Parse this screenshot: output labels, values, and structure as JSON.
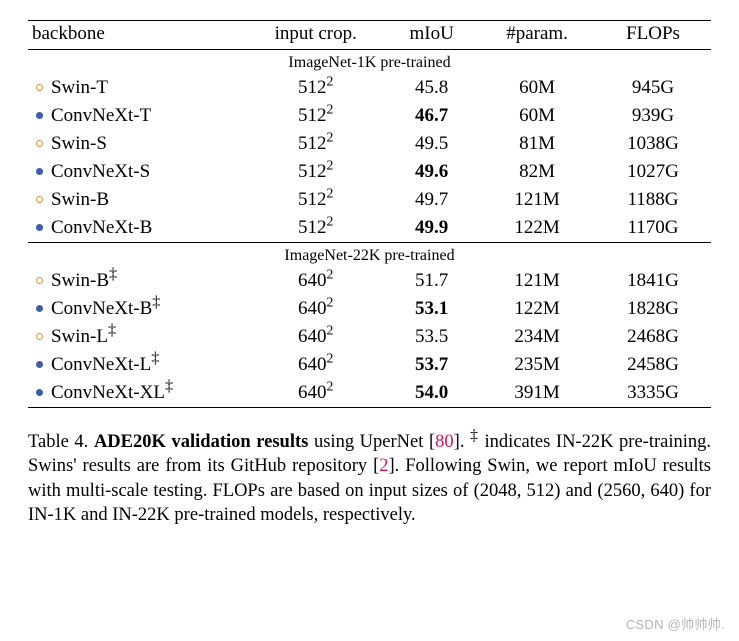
{
  "colors": {
    "swin_bullet": "#e98f3f",
    "convnext_bullet": "#3a5da8",
    "ref_link": "#d4145a"
  },
  "header": {
    "backbone": "backbone",
    "input_crop": "input crop.",
    "miou": "mIoU",
    "param": "#param.",
    "flops": "FLOPs"
  },
  "sections": [
    {
      "title": "ImageNet-1K pre-trained",
      "rows": [
        {
          "bullet": "hollow",
          "bullet_color": "swin",
          "name": "Swin-T",
          "crop_base": "512",
          "crop_exp": "2",
          "miou": "45.8",
          "miou_bold": false,
          "param": "60M",
          "flops": "945G"
        },
        {
          "bullet": "filled",
          "bullet_color": "convnext",
          "name": "ConvNeXt-T",
          "crop_base": "512",
          "crop_exp": "2",
          "miou": "46.7",
          "miou_bold": true,
          "param": "60M",
          "flops": "939G"
        },
        {
          "bullet": "hollow",
          "bullet_color": "swin",
          "name": "Swin-S",
          "crop_base": "512",
          "crop_exp": "2",
          "miou": "49.5",
          "miou_bold": false,
          "param": "81M",
          "flops": "1038G"
        },
        {
          "bullet": "filled",
          "bullet_color": "convnext",
          "name": "ConvNeXt-S",
          "crop_base": "512",
          "crop_exp": "2",
          "miou": "49.6",
          "miou_bold": true,
          "param": "82M",
          "flops": "1027G"
        },
        {
          "bullet": "hollow",
          "bullet_color": "swin",
          "name": "Swin-B",
          "crop_base": "512",
          "crop_exp": "2",
          "miou": "49.7",
          "miou_bold": false,
          "param": "121M",
          "flops": "1188G"
        },
        {
          "bullet": "filled",
          "bullet_color": "convnext",
          "name": "ConvNeXt-B",
          "crop_base": "512",
          "crop_exp": "2",
          "miou": "49.9",
          "miou_bold": true,
          "param": "122M",
          "flops": "1170G"
        }
      ]
    },
    {
      "title": "ImageNet-22K pre-trained",
      "rows": [
        {
          "bullet": "hollow",
          "bullet_color": "swin",
          "name": "Swin-B",
          "dagger": true,
          "crop_base": "640",
          "crop_exp": "2",
          "miou": "51.7",
          "miou_bold": false,
          "param": "121M",
          "flops": "1841G"
        },
        {
          "bullet": "filled",
          "bullet_color": "convnext",
          "name": "ConvNeXt-B",
          "dagger": true,
          "crop_base": "640",
          "crop_exp": "2",
          "miou": "53.1",
          "miou_bold": true,
          "param": "122M",
          "flops": "1828G"
        },
        {
          "bullet": "hollow",
          "bullet_color": "swin",
          "name": "Swin-L",
          "dagger": true,
          "crop_base": "640",
          "crop_exp": "2",
          "miou": "53.5",
          "miou_bold": false,
          "param": "234M",
          "flops": "2468G"
        },
        {
          "bullet": "filled",
          "bullet_color": "convnext",
          "name": "ConvNeXt-L",
          "dagger": true,
          "crop_base": "640",
          "crop_exp": "2",
          "miou": "53.7",
          "miou_bold": true,
          "param": "235M",
          "flops": "2458G"
        },
        {
          "bullet": "filled",
          "bullet_color": "convnext",
          "name": "ConvNeXt-XL",
          "dagger": true,
          "crop_base": "640",
          "crop_exp": "2",
          "miou": "54.0",
          "miou_bold": true,
          "param": "391M",
          "flops": "3335G"
        }
      ]
    }
  ],
  "caption": {
    "label": "Table 4.",
    "title": "ADE20K validation results",
    "after_title": " using UperNet [",
    "ref1": "80",
    "after_ref1": "]. ",
    "dagger_note": " indicates IN-22K pre-training.  Swins' results are from its GitHub repository [",
    "ref2": "2",
    "after_ref2": "]. Following Swin, we report mIoU results with multi-scale testing. FLOPs are based on input sizes of (2048, 512) and (2560, 640) for IN-1K and IN-22K pre-trained models, respectively."
  },
  "watermark": "CSDN @帅帅帅."
}
